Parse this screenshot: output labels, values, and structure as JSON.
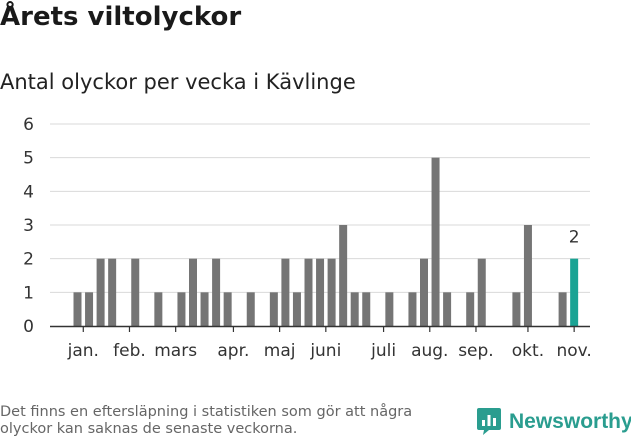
{
  "header": {
    "title": "Årets viltolyckor",
    "subtitle": "Antal olyckor per vecka i Kävlinge"
  },
  "footer": {
    "note": "Det finns en eftersläpning i statistiken som gör att några olyckor kan saknas de senaste veckorna.",
    "brand": "Newsworthy"
  },
  "colors": {
    "bar": "#757575",
    "highlight": "#1aa394",
    "grid": "#d9d9d9",
    "axis": "#333333",
    "brand": "#2a9d8f"
  },
  "chart_data": {
    "type": "bar",
    "title": "Antal olyckor per vecka i Kävlinge",
    "xlabel": "",
    "ylabel": "",
    "ylim": [
      0,
      6
    ],
    "yticks": [
      0,
      1,
      2,
      3,
      4,
      5,
      6
    ],
    "weeks": [
      1,
      2,
      3,
      4,
      5,
      6,
      7,
      8,
      9,
      10,
      11,
      12,
      13,
      14,
      15,
      16,
      17,
      18,
      19,
      20,
      21,
      22,
      23,
      24,
      25,
      26,
      27,
      28,
      29,
      30,
      31,
      32,
      33,
      34,
      35,
      36,
      37,
      38,
      39,
      40,
      41,
      42,
      43,
      44,
      45
    ],
    "values": [
      1,
      1,
      2,
      2,
      0,
      2,
      0,
      1,
      0,
      1,
      2,
      1,
      2,
      1,
      0,
      1,
      0,
      1,
      2,
      1,
      2,
      2,
      2,
      3,
      1,
      1,
      0,
      1,
      0,
      1,
      2,
      5,
      1,
      0,
      1,
      2,
      0,
      0,
      1,
      3,
      0,
      0,
      1,
      2,
      0
    ],
    "highlight_week": 44,
    "highlight_label": "2",
    "month_labels": [
      {
        "label": "jan.",
        "week": 1.5
      },
      {
        "label": "feb.",
        "week": 5.5
      },
      {
        "label": "mars",
        "week": 9.5
      },
      {
        "label": "apr.",
        "week": 14.5
      },
      {
        "label": "maj",
        "week": 18.5
      },
      {
        "label": "juni",
        "week": 22.5
      },
      {
        "label": "juli",
        "week": 27.5
      },
      {
        "label": "aug.",
        "week": 31.5
      },
      {
        "label": "sep.",
        "week": 35.5
      },
      {
        "label": "okt.",
        "week": 40
      },
      {
        "label": "nov.",
        "week": 44
      }
    ]
  }
}
